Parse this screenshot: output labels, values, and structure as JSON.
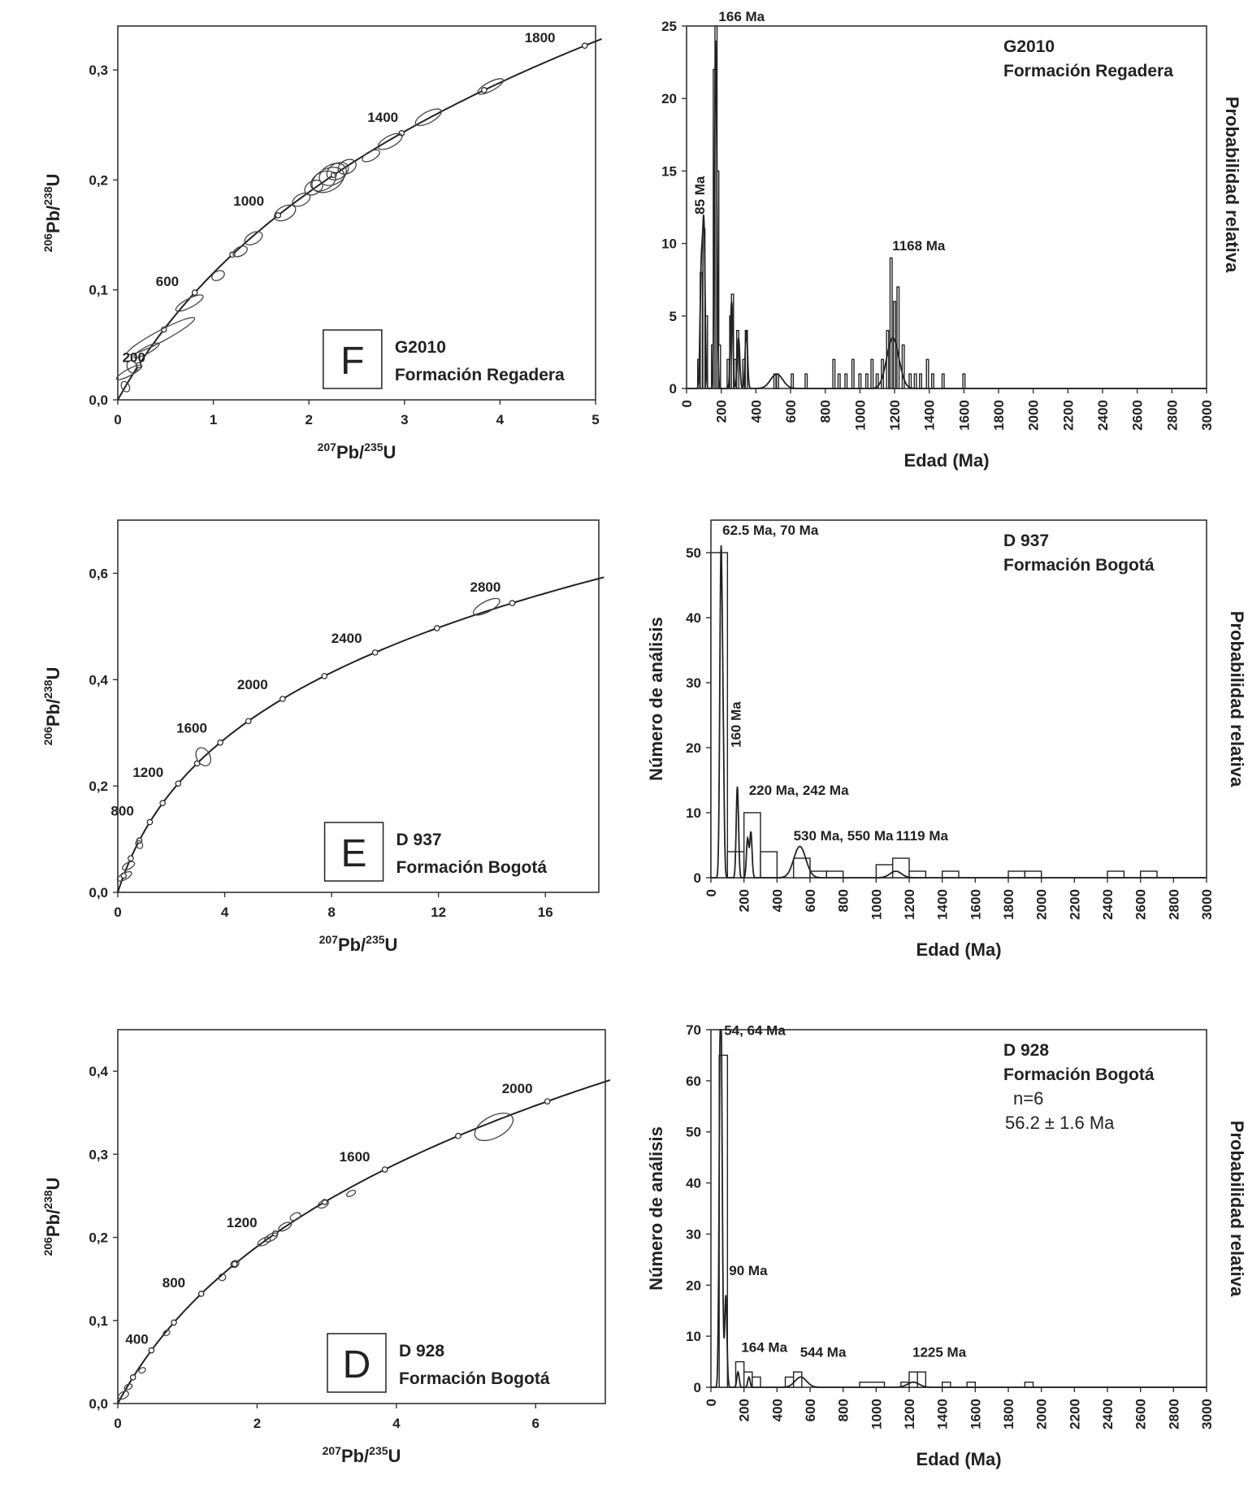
{
  "chart_data": [
    {
      "id": "F",
      "type": "scatter",
      "title": "G2010",
      "subtitle": "Formación Regadera",
      "panel_letter": "F",
      "xlabel": "207Pb/235U",
      "ylabel": "206Pb/238U",
      "xlim": [
        0,
        5
      ],
      "ylim": [
        0,
        0.34
      ],
      "x_ticks": [
        0,
        1,
        2,
        3,
        4,
        5
      ],
      "x_tick_labels": [
        "0",
        "1",
        "2",
        "3",
        "4",
        "5"
      ],
      "y_ticks": [
        0,
        0.1,
        0.2,
        0.3
      ],
      "y_tick_labels": [
        "0,0",
        "0,1",
        "0,2",
        "0,3"
      ],
      "age_labels": [
        {
          "label": "200",
          "age": 200
        },
        {
          "label": "600",
          "age": 600
        },
        {
          "label": "1000",
          "age": 1000
        },
        {
          "label": "1400",
          "age": 1400
        },
        {
          "label": "1800",
          "age": 1800
        }
      ],
      "ellipses": [
        {
          "x": 0.08,
          "y": 0.012,
          "rx": 0.04,
          "ry": 0.005
        },
        {
          "x": 0.12,
          "y": 0.025,
          "rx": 0.15,
          "ry": 0.003
        },
        {
          "x": 0.15,
          "y": 0.03,
          "rx": 0.05,
          "ry": 0.006
        },
        {
          "x": 0.3,
          "y": 0.045,
          "rx": 0.15,
          "ry": 0.003
        },
        {
          "x": 0.45,
          "y": 0.058,
          "rx": 0.4,
          "ry": 0.005
        },
        {
          "x": 0.75,
          "y": 0.088,
          "rx": 0.16,
          "ry": 0.004
        },
        {
          "x": 1.05,
          "y": 0.113,
          "rx": 0.07,
          "ry": 0.004
        },
        {
          "x": 1.28,
          "y": 0.135,
          "rx": 0.08,
          "ry": 0.004
        },
        {
          "x": 1.42,
          "y": 0.147,
          "rx": 0.1,
          "ry": 0.005
        },
        {
          "x": 1.75,
          "y": 0.17,
          "rx": 0.12,
          "ry": 0.006
        },
        {
          "x": 1.92,
          "y": 0.182,
          "rx": 0.1,
          "ry": 0.005
        },
        {
          "x": 2.05,
          "y": 0.193,
          "rx": 0.1,
          "ry": 0.006
        },
        {
          "x": 2.15,
          "y": 0.199,
          "rx": 0.14,
          "ry": 0.008
        },
        {
          "x": 2.25,
          "y": 0.205,
          "rx": 0.15,
          "ry": 0.009
        },
        {
          "x": 2.3,
          "y": 0.208,
          "rx": 0.12,
          "ry": 0.007
        },
        {
          "x": 2.2,
          "y": 0.2,
          "rx": 0.18,
          "ry": 0.01
        },
        {
          "x": 2.4,
          "y": 0.212,
          "rx": 0.1,
          "ry": 0.006
        },
        {
          "x": 2.65,
          "y": 0.222,
          "rx": 0.1,
          "ry": 0.004
        },
        {
          "x": 2.85,
          "y": 0.235,
          "rx": 0.14,
          "ry": 0.005
        },
        {
          "x": 3.25,
          "y": 0.257,
          "rx": 0.15,
          "ry": 0.005
        },
        {
          "x": 3.9,
          "y": 0.285,
          "rx": 0.15,
          "ry": 0.004
        }
      ]
    },
    {
      "id": "G",
      "type": "bar",
      "title": "G2010",
      "subtitle": "Formación Regadera",
      "xlabel": "Edad (Ma)",
      "ylabel": "",
      "right_label": "Probabilidad relativa",
      "xlim": [
        0,
        3000
      ],
      "ylim": [
        0,
        25
      ],
      "x_ticks": [
        0,
        200,
        400,
        600,
        800,
        1000,
        1200,
        1400,
        1600,
        1800,
        2000,
        2200,
        2400,
        2600,
        2800,
        3000
      ],
      "x_tick_labels": [
        "0",
        "200",
        "400",
        "600",
        "800",
        "1000",
        "1200",
        "1400",
        "1600",
        "1800",
        "2000",
        "2200",
        "2400",
        "2600",
        "2800",
        "3000"
      ],
      "y_ticks": [
        0,
        5,
        10,
        15,
        20,
        25
      ],
      "y_tick_labels": [
        "0",
        "5",
        "10",
        "15",
        "20",
        "25"
      ],
      "annotations": [
        {
          "text": "166 Ma",
          "x": 166,
          "y": 25
        },
        {
          "text": "85 Ma",
          "x": 85,
          "y": 12
        },
        {
          "text": "1168 Ma",
          "x": 1168,
          "y": 9.2
        }
      ],
      "bins": [
        {
          "age": 70,
          "value": 2
        },
        {
          "age": 85,
          "value": 8
        },
        {
          "age": 100,
          "value": 11
        },
        {
          "age": 115,
          "value": 5
        },
        {
          "age": 150,
          "value": 3
        },
        {
          "age": 160,
          "value": 22
        },
        {
          "age": 170,
          "value": 25
        },
        {
          "age": 180,
          "value": 15
        },
        {
          "age": 190,
          "value": 3
        },
        {
          "age": 240,
          "value": 2
        },
        {
          "age": 255,
          "value": 5
        },
        {
          "age": 265,
          "value": 6.5
        },
        {
          "age": 280,
          "value": 2
        },
        {
          "age": 295,
          "value": 4
        },
        {
          "age": 330,
          "value": 2
        },
        {
          "age": 345,
          "value": 4
        },
        {
          "age": 510,
          "value": 1
        },
        {
          "age": 525,
          "value": 1
        },
        {
          "age": 610,
          "value": 1
        },
        {
          "age": 690,
          "value": 1
        },
        {
          "age": 850,
          "value": 2
        },
        {
          "age": 880,
          "value": 1
        },
        {
          "age": 920,
          "value": 1
        },
        {
          "age": 960,
          "value": 2
        },
        {
          "age": 1000,
          "value": 1
        },
        {
          "age": 1040,
          "value": 1
        },
        {
          "age": 1070,
          "value": 2
        },
        {
          "age": 1100,
          "value": 1
        },
        {
          "age": 1130,
          "value": 2
        },
        {
          "age": 1160,
          "value": 4
        },
        {
          "age": 1180,
          "value": 9
        },
        {
          "age": 1200,
          "value": 6
        },
        {
          "age": 1220,
          "value": 7
        },
        {
          "age": 1250,
          "value": 3
        },
        {
          "age": 1290,
          "value": 1
        },
        {
          "age": 1320,
          "value": 1
        },
        {
          "age": 1350,
          "value": 1
        },
        {
          "age": 1390,
          "value": 2
        },
        {
          "age": 1420,
          "value": 1
        },
        {
          "age": 1480,
          "value": 1
        },
        {
          "age": 1600,
          "value": 1
        }
      ],
      "prob_peaks": [
        {
          "age": 85,
          "value": 8
        },
        {
          "age": 100,
          "value": 11
        },
        {
          "age": 168,
          "value": 24
        },
        {
          "age": 260,
          "value": 6
        },
        {
          "age": 300,
          "value": 3.5
        },
        {
          "age": 345,
          "value": 4
        },
        {
          "age": 520,
          "value": 1
        },
        {
          "age": 1190,
          "value": 3.5
        }
      ]
    },
    {
      "id": "E",
      "type": "scatter",
      "title": "D 937",
      "subtitle": "Formación Bogotá",
      "panel_letter": "E",
      "xlabel": "207Pb/235U",
      "ylabel": "206Pb/238U",
      "xlim": [
        0,
        18
      ],
      "ylim": [
        0,
        0.7
      ],
      "x_ticks": [
        0,
        4,
        8,
        12,
        16
      ],
      "x_tick_labels": [
        "0",
        "4",
        "8",
        "12",
        "16"
      ],
      "y_ticks": [
        0,
        0.2,
        0.4,
        0.6
      ],
      "y_tick_labels": [
        "0,0",
        "0,2",
        "0,4",
        "0,6"
      ],
      "age_labels": [
        {
          "label": "800",
          "age": 800
        },
        {
          "label": "1200",
          "age": 1200
        },
        {
          "label": "1600",
          "age": 1600
        },
        {
          "label": "2000",
          "age": 2000
        },
        {
          "label": "2400",
          "age": 2400
        },
        {
          "label": "2800",
          "age": 2800
        }
      ],
      "ellipses": [
        {
          "x": 0.25,
          "y": 0.03,
          "rx": 0.3,
          "ry": 0.006
        },
        {
          "x": 0.4,
          "y": 0.05,
          "rx": 0.25,
          "ry": 0.006
        },
        {
          "x": 0.8,
          "y": 0.09,
          "rx": 0.12,
          "ry": 0.008
        },
        {
          "x": 3.2,
          "y": 0.255,
          "rx": 0.25,
          "ry": 0.018
        },
        {
          "x": 13.8,
          "y": 0.537,
          "rx": 0.55,
          "ry": 0.01
        }
      ]
    },
    {
      "id": "H",
      "type": "bar",
      "title": "D 937",
      "subtitle": "Formación Bogotá",
      "xlabel": "Edad (Ma)",
      "ylabel": "Número de análisis",
      "right_label": "Probabilidad relativa",
      "xlim": [
        0,
        3000
      ],
      "ylim": [
        0,
        55
      ],
      "x_ticks": [
        0,
        200,
        400,
        600,
        800,
        1000,
        1200,
        1400,
        1600,
        1800,
        2000,
        2200,
        2400,
        2600,
        2800,
        3000
      ],
      "x_tick_labels": [
        "0",
        "200",
        "400",
        "600",
        "800",
        "1000",
        "1200",
        "1400",
        "1600",
        "1800",
        "2000",
        "2200",
        "2400",
        "2600",
        "2800",
        "3000"
      ],
      "y_ticks": [
        0,
        10,
        20,
        30,
        40,
        50
      ],
      "y_tick_labels": [
        "0",
        "10",
        "20",
        "30",
        "40",
        "50"
      ],
      "annotations": [
        {
          "text": "62.5 Ma, 70 Ma",
          "x": 50,
          "y": 52
        },
        {
          "text": "160 Ma",
          "x": 160,
          "y": 20
        },
        {
          "text": "220 Ma, 242 Ma",
          "x": 210,
          "y": 12
        },
        {
          "text": "530 Ma, 550 Ma",
          "x": 480,
          "y": 5
        },
        {
          "text": "1119 Ma",
          "x": 1100,
          "y": 5
        }
      ],
      "bins": [
        {
          "start": 0,
          "end": 100,
          "value": 50
        },
        {
          "start": 100,
          "end": 200,
          "value": 4
        },
        {
          "start": 200,
          "end": 300,
          "value": 10
        },
        {
          "start": 300,
          "end": 400,
          "value": 4
        },
        {
          "start": 500,
          "end": 600,
          "value": 3
        },
        {
          "start": 600,
          "end": 700,
          "value": 1
        },
        {
          "start": 700,
          "end": 800,
          "value": 1
        },
        {
          "start": 1000,
          "end": 1100,
          "value": 2
        },
        {
          "start": 1100,
          "end": 1200,
          "value": 3
        },
        {
          "start": 1200,
          "end": 1300,
          "value": 1
        },
        {
          "start": 1400,
          "end": 1500,
          "value": 1
        },
        {
          "start": 1800,
          "end": 1900,
          "value": 1
        },
        {
          "start": 1900,
          "end": 2000,
          "value": 1
        },
        {
          "start": 2400,
          "end": 2500,
          "value": 1
        },
        {
          "start": 2600,
          "end": 2700,
          "value": 1
        }
      ],
      "prob_peaks": [
        {
          "age": 60,
          "value": 45
        },
        {
          "age": 72,
          "value": 22
        },
        {
          "age": 160,
          "value": 14
        },
        {
          "age": 222,
          "value": 6
        },
        {
          "age": 242,
          "value": 7
        },
        {
          "age": 530,
          "value": 3
        },
        {
          "age": 550,
          "value": 2
        },
        {
          "age": 1119,
          "value": 1
        }
      ]
    },
    {
      "id": "D",
      "type": "scatter",
      "title": "D 928",
      "subtitle": "Formación Bogotá",
      "panel_letter": "D",
      "xlabel": "207Pb/235U",
      "ylabel": "206Pb/238U",
      "xlim": [
        0,
        7
      ],
      "ylim": [
        0,
        0.45
      ],
      "x_ticks": [
        0,
        2,
        4,
        6
      ],
      "x_tick_labels": [
        "0",
        "2",
        "4",
        "6"
      ],
      "y_ticks": [
        0,
        0.1,
        0.2,
        0.3,
        0.4
      ],
      "y_tick_labels": [
        "0,0",
        "0,1",
        "0,2",
        "0,3",
        "0,4"
      ],
      "age_labels": [
        {
          "label": "400",
          "age": 400
        },
        {
          "label": "800",
          "age": 800
        },
        {
          "label": "1200",
          "age": 1200
        },
        {
          "label": "1600",
          "age": 1600
        },
        {
          "label": "2000",
          "age": 2000
        }
      ],
      "ellipses": [
        {
          "x": 0.08,
          "y": 0.01,
          "rx": 0.08,
          "ry": 0.004
        },
        {
          "x": 0.15,
          "y": 0.02,
          "rx": 0.06,
          "ry": 0.003
        },
        {
          "x": 0.35,
          "y": 0.04,
          "rx": 0.05,
          "ry": 0.003
        },
        {
          "x": 0.7,
          "y": 0.085,
          "rx": 0.05,
          "ry": 0.003
        },
        {
          "x": 1.5,
          "y": 0.152,
          "rx": 0.05,
          "ry": 0.004
        },
        {
          "x": 1.68,
          "y": 0.168,
          "rx": 0.06,
          "ry": 0.004
        },
        {
          "x": 2.1,
          "y": 0.195,
          "rx": 0.1,
          "ry": 0.004
        },
        {
          "x": 2.2,
          "y": 0.2,
          "rx": 0.1,
          "ry": 0.004
        },
        {
          "x": 2.4,
          "y": 0.213,
          "rx": 0.1,
          "ry": 0.004
        },
        {
          "x": 2.55,
          "y": 0.225,
          "rx": 0.08,
          "ry": 0.004
        },
        {
          "x": 2.95,
          "y": 0.24,
          "rx": 0.08,
          "ry": 0.004
        },
        {
          "x": 3.35,
          "y": 0.253,
          "rx": 0.07,
          "ry": 0.003
        },
        {
          "x": 5.4,
          "y": 0.333,
          "rx": 0.3,
          "ry": 0.013
        }
      ]
    },
    {
      "id": "I",
      "type": "bar",
      "title": "D 928",
      "subtitle": "Formación Bogotá",
      "xlabel": "Edad (Ma)",
      "ylabel": "Número de análisis",
      "right_label": "Probabilidad relativa",
      "xlim": [
        0,
        3000
      ],
      "ylim": [
        0,
        70
      ],
      "x_ticks": [
        0,
        200,
        400,
        600,
        800,
        1000,
        1200,
        1400,
        1600,
        1800,
        2000,
        2200,
        2400,
        2600,
        2800,
        3000
      ],
      "x_tick_labels": [
        "0",
        "200",
        "400",
        "600",
        "800",
        "1000",
        "1200",
        "1400",
        "1600",
        "1800",
        "2000",
        "2200",
        "2400",
        "2600",
        "2800",
        "3000"
      ],
      "y_ticks": [
        0,
        10,
        20,
        30,
        40,
        50,
        60,
        70
      ],
      "y_tick_labels": [
        "0",
        "10",
        "20",
        "30",
        "40",
        "50",
        "60",
        "70"
      ],
      "info_n": "n=6",
      "info_age": "56.2  ±  1.6  Ma",
      "annotations": [
        {
          "text": "54, 64 Ma",
          "x": 60,
          "y": 68
        },
        {
          "text": "90 Ma",
          "x": 90,
          "y": 21
        },
        {
          "text": "164 Ma",
          "x": 164,
          "y": 6
        },
        {
          "text": "544 Ma",
          "x": 520,
          "y": 5
        },
        {
          "text": "1225 Ma",
          "x": 1200,
          "y": 5
        }
      ],
      "bins": [
        {
          "start": 50,
          "end": 100,
          "value": 65
        },
        {
          "start": 150,
          "end": 200,
          "value": 5
        },
        {
          "start": 200,
          "end": 250,
          "value": 3
        },
        {
          "start": 250,
          "end": 300,
          "value": 2
        },
        {
          "start": 450,
          "end": 500,
          "value": 2
        },
        {
          "start": 500,
          "end": 550,
          "value": 3
        },
        {
          "start": 900,
          "end": 1050,
          "value": 1
        },
        {
          "start": 1150,
          "end": 1200,
          "value": 1
        },
        {
          "start": 1200,
          "end": 1250,
          "value": 3
        },
        {
          "start": 1250,
          "end": 1300,
          "value": 3
        },
        {
          "start": 1400,
          "end": 1450,
          "value": 1
        },
        {
          "start": 1550,
          "end": 1600,
          "value": 1
        },
        {
          "start": 1900,
          "end": 1950,
          "value": 1
        }
      ],
      "prob_peaks": [
        {
          "age": 56,
          "value": 55
        },
        {
          "age": 64,
          "value": 40
        },
        {
          "age": 90,
          "value": 18
        },
        {
          "age": 164,
          "value": 3
        },
        {
          "age": 230,
          "value": 2
        },
        {
          "age": 544,
          "value": 2
        },
        {
          "age": 1225,
          "value": 1
        }
      ]
    }
  ]
}
